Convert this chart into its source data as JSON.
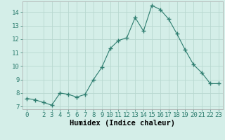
{
  "x": [
    0,
    1,
    2,
    3,
    4,
    5,
    6,
    7,
    8,
    9,
    10,
    11,
    12,
    13,
    14,
    15,
    16,
    17,
    18,
    19,
    20,
    21,
    22,
    23
  ],
  "y": [
    7.6,
    7.5,
    7.3,
    7.1,
    8.0,
    7.9,
    7.7,
    7.9,
    9.0,
    9.9,
    11.3,
    11.9,
    12.1,
    13.6,
    12.6,
    14.5,
    14.2,
    13.5,
    12.4,
    11.2,
    10.1,
    9.5,
    8.7,
    8.7
  ],
  "line_color": "#2d7d6f",
  "marker": "+",
  "marker_size": 4,
  "bg_color": "#d4eee8",
  "grid_color": "#b8d8d0",
  "xlabel": "Humidex (Indice chaleur)",
  "xlabel_fontsize": 7.5,
  "tick_fontsize": 6.5,
  "xlim": [
    -0.5,
    23.5
  ],
  "ylim": [
    6.8,
    14.8
  ],
  "yticks": [
    7,
    8,
    9,
    10,
    11,
    12,
    13,
    14
  ],
  "xticks": [
    0,
    2,
    3,
    4,
    5,
    6,
    7,
    8,
    9,
    10,
    11,
    12,
    13,
    14,
    15,
    16,
    17,
    18,
    19,
    20,
    21,
    22,
    23
  ]
}
